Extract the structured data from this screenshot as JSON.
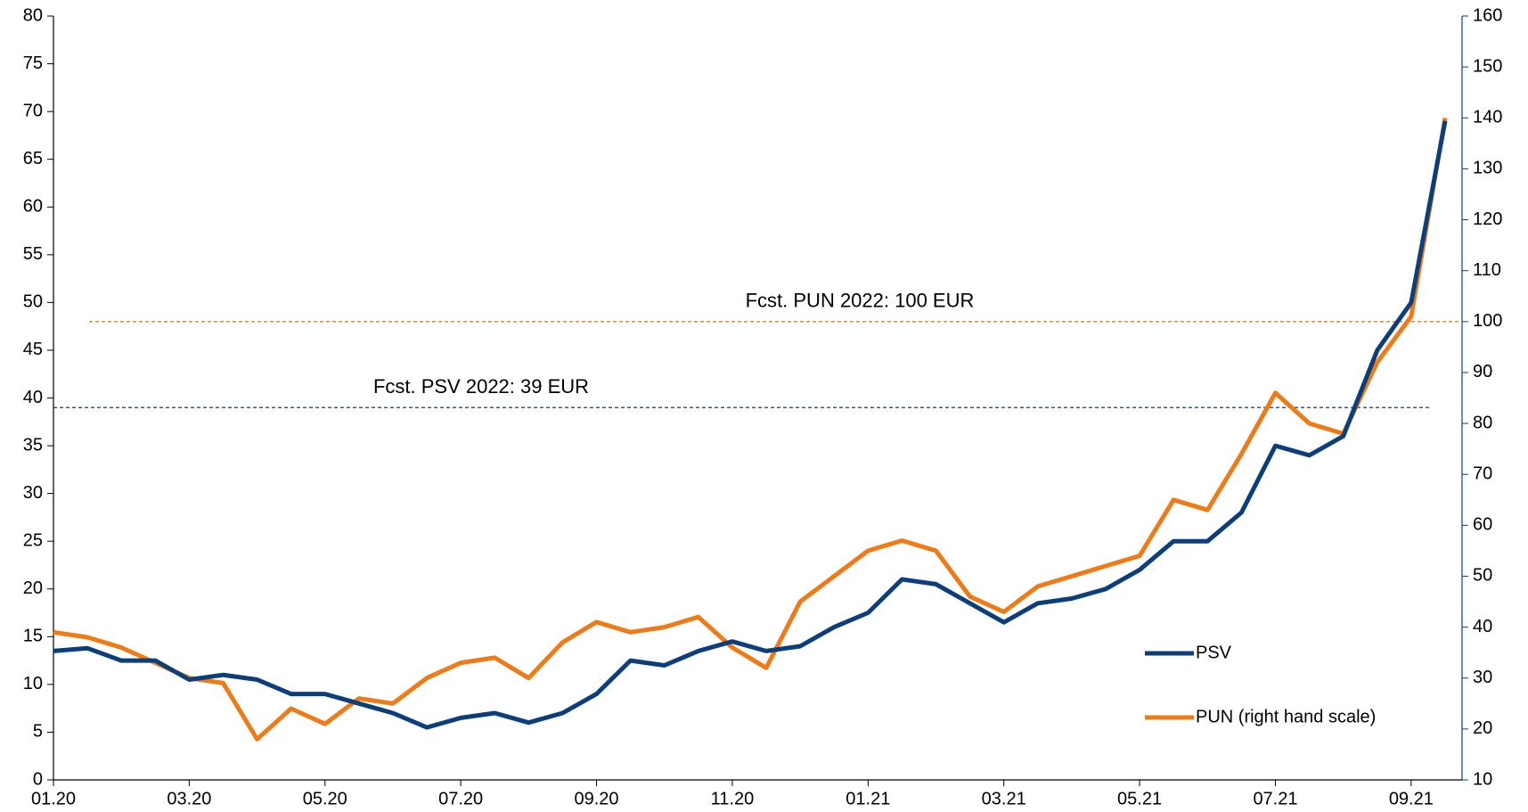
{
  "chart_data": {
    "type": "line",
    "categories": [
      "01.20",
      null,
      null,
      null,
      "03.20",
      null,
      null,
      null,
      "05.20",
      null,
      null,
      null,
      "07.20",
      null,
      null,
      null,
      "09.20",
      null,
      null,
      null,
      "11.20",
      null,
      null,
      null,
      "01.21",
      null,
      null,
      null,
      "03.21",
      null,
      null,
      null,
      "05.21",
      null,
      null,
      null,
      "07.21",
      null,
      null,
      null,
      "09.21",
      null
    ],
    "series": [
      {
        "name": "PSV",
        "color": "#0b3f7c",
        "axis": "y",
        "values": [
          13.5,
          13.8,
          12.5,
          12.5,
          10.5,
          11,
          10.5,
          9,
          9,
          8,
          7,
          5.5,
          6.5,
          7,
          6,
          7,
          9,
          12.5,
          12,
          13.5,
          14.5,
          13.5,
          14,
          16,
          17.5,
          21,
          20.5,
          18.5,
          16.5,
          18.5,
          19,
          20,
          22,
          25,
          25,
          28,
          35,
          34,
          36,
          45,
          50,
          69
        ]
      },
      {
        "name": "PUN (right hand scale)",
        "color": "#f07b16",
        "axis": "y2",
        "values": [
          39,
          38,
          36,
          33,
          30,
          29,
          18,
          24,
          21,
          26,
          25,
          30,
          33,
          34,
          30,
          37,
          41,
          39,
          40,
          42,
          36,
          32,
          45,
          50,
          55,
          57,
          55,
          46,
          43,
          48,
          50,
          52,
          54,
          65,
          63,
          74,
          86,
          80,
          78,
          92,
          101,
          140
        ]
      }
    ],
    "reference_lines": [
      {
        "label": "Fcst. PSV 2022: 39 EUR",
        "value": 39,
        "axis": "y",
        "color": "#0b3f7c"
      },
      {
        "label": "Fcst. PUN 2022: 100 EUR",
        "value": 100,
        "axis": "y2",
        "color": "#f07b16"
      }
    ],
    "ylim": [
      0,
      80
    ],
    "yticks": [
      0,
      5,
      10,
      15,
      20,
      25,
      30,
      35,
      40,
      45,
      50,
      55,
      60,
      65,
      70,
      75,
      80
    ],
    "y2lim": [
      10,
      160
    ],
    "y2ticks": [
      10,
      20,
      30,
      40,
      50,
      60,
      70,
      80,
      90,
      100,
      110,
      120,
      130,
      140,
      150,
      160
    ],
    "legend": "lower right",
    "grid": false
  }
}
